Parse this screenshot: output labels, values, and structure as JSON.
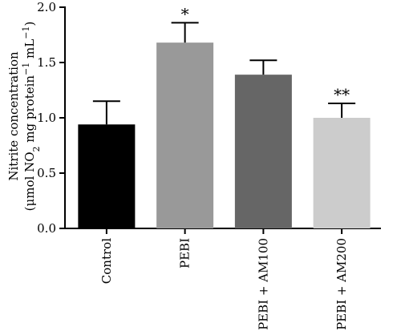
{
  "chart_data": {
    "type": "bar",
    "title": "",
    "ylabel_line1": "Nitrite concentration",
    "ylabel_line2": {
      "p1": "(μmol NO",
      "sub": "2",
      "p2": " mg protein",
      "sup1": "−1",
      "p3": " mL",
      "sup2": "−1",
      "p4": ")"
    },
    "ylim": [
      0,
      2.0
    ],
    "yticks": [
      "0.0",
      "0.5",
      "1.0",
      "1.5",
      "2.0"
    ],
    "categories": [
      "Control",
      "PEBI",
      "PEBI + AM100",
      "PEBI + AM200"
    ],
    "values": [
      0.94,
      1.68,
      1.39,
      1.0
    ],
    "errors": [
      0.21,
      0.18,
      0.13,
      0.13
    ],
    "significance": [
      "",
      "*",
      "",
      "**"
    ],
    "colors": [
      "#000000",
      "#999999",
      "#666666",
      "#cccccc"
    ]
  }
}
